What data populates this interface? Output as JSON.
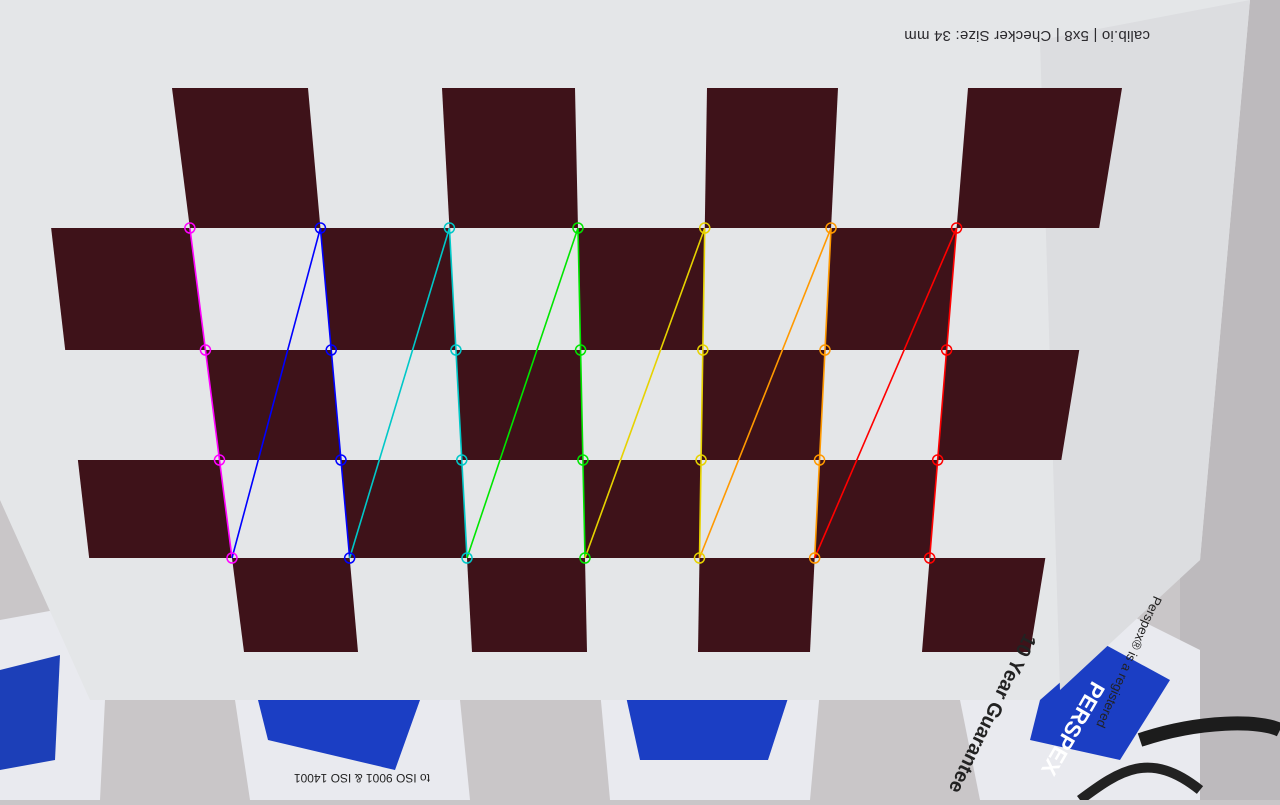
{
  "calibration_sheet": {
    "caption": "calib.io | 5x8 | Checker Size: 34 mm"
  },
  "colors": {
    "background": "#c9c6c8",
    "paper": "#e6e8ea",
    "checker_dark": "#3e1219",
    "row_colors": [
      "#ff00ff",
      "#0000ff",
      "#00c8c8",
      "#00e600",
      "#e6d200",
      "#ff9900",
      "#ff0000"
    ]
  },
  "detected_corners": {
    "pattern": "7x4 inner corners",
    "rows": 7,
    "points_per_row": 4
  },
  "boxes": {
    "label_top": "10 Year Guarantee",
    "brand": "PERSPEX",
    "small_line": "Perspex® is a registered",
    "iso_line": "to ISO 9001 & ISO 14001"
  }
}
